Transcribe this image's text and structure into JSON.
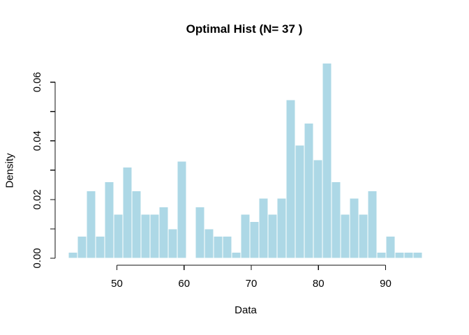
{
  "title": "Optimal Hist (N= 37 )",
  "xlabel": "Data",
  "ylabel": "Density",
  "colors": {
    "bar_fill": "#ADD8E6",
    "bar_border": "#FFFFFF",
    "axis": "#111111",
    "text": "#000000",
    "background": "#FFFFFF"
  },
  "chart_data": {
    "type": "bar",
    "subtype": "histogram",
    "title": "Optimal Hist (N= 37 )",
    "xlabel": "Data",
    "ylabel": "Density",
    "x_range": [
      42.8,
      95.5
    ],
    "ylim": [
      0,
      0.068
    ],
    "bin_width": 1.35,
    "first_bin_start": 42.8,
    "grid": false,
    "legend": false,
    "densities": [
      0.002,
      0.0075,
      0.023,
      0.0075,
      0.026,
      0.015,
      0.031,
      0.023,
      0.015,
      0.015,
      0.0175,
      0.01,
      0.033,
      0,
      0.0175,
      0.01,
      0.0075,
      0.0075,
      0.002,
      0.015,
      0.0125,
      0.0205,
      0.015,
      0.0205,
      0.054,
      0.0385,
      0.046,
      0.0335,
      0.0665,
      0.026,
      0.015,
      0.0205,
      0.015,
      0.023,
      0.002,
      0.0075,
      0.002,
      0.002,
      0.002
    ],
    "x_ticks": [
      {
        "value": 50,
        "label": "50"
      },
      {
        "value": 60,
        "label": "60"
      },
      {
        "value": 70,
        "label": "70"
      },
      {
        "value": 80,
        "label": "80"
      },
      {
        "value": 90,
        "label": "90"
      }
    ],
    "y_ticks": [
      {
        "value": 0.0,
        "label": "0.00"
      },
      {
        "value": 0.01,
        "label": ""
      },
      {
        "value": 0.02,
        "label": "0.02"
      },
      {
        "value": 0.03,
        "label": ""
      },
      {
        "value": 0.04,
        "label": "0.04"
      },
      {
        "value": 0.05,
        "label": ""
      },
      {
        "value": 0.06,
        "label": "0.06"
      }
    ]
  }
}
